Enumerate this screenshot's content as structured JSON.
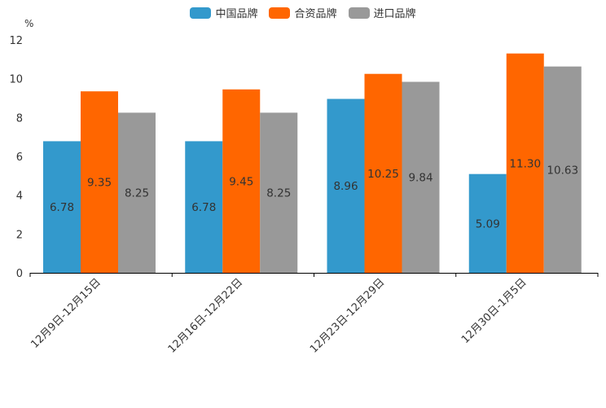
{
  "chart_data": {
    "type": "bar",
    "unit_label": "%",
    "categories": [
      "12月9日-12月15日",
      "12月16日-12月22日",
      "12月23日-12月29日",
      "12月30日-1月5日"
    ],
    "series": [
      {
        "name": "中国品牌",
        "color": "#3399cc",
        "values": [
          6.78,
          6.78,
          8.96,
          5.09
        ]
      },
      {
        "name": "合资品牌",
        "color": "#ff6600",
        "values": [
          9.35,
          9.45,
          10.25,
          11.3
        ]
      },
      {
        "name": "进口品牌",
        "color": "#999999",
        "values": [
          8.25,
          8.25,
          9.84,
          10.63
        ]
      }
    ],
    "value_labels": [
      [
        "6.78",
        "6.78",
        "8.96",
        "5.09"
      ],
      [
        "9.35",
        "9.45",
        "10.25",
        "11.30"
      ],
      [
        "8.25",
        "8.25",
        "9.84",
        "10.63"
      ]
    ],
    "ylim": [
      0,
      12
    ],
    "yticks": [
      0,
      2,
      4,
      6,
      8,
      10,
      12
    ],
    "legend_position": "top-center",
    "grid": false
  }
}
